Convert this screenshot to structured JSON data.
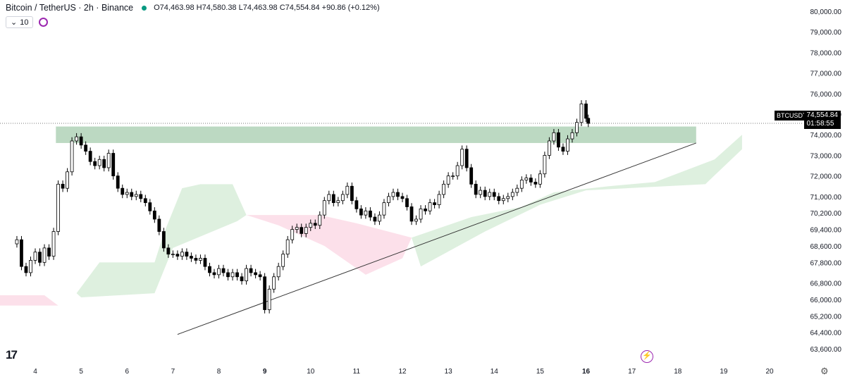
{
  "header": {
    "title": "Bitcoin / TetherUS · 2h · Binance",
    "ohlc": "O74,463.98  H74,580.38  L74,463.98  C74,554.84  +90.86 (+0.12%)",
    "indicator_value": "10"
  },
  "last_price": {
    "symbol": "BTCUSDT",
    "price": "74,554.84",
    "countdown": "01:58:55"
  },
  "colors": {
    "up": "#ffffff",
    "down": "#000000",
    "wick": "#000000",
    "kumo_bull": "#a5d6a7",
    "kumo_bear": "#f8bbd0",
    "zone": "#8fbf9a"
  },
  "chart_data": {
    "type": "candlestick",
    "x_ticks": [
      "4",
      "5",
      "6",
      "7",
      "8",
      "9",
      "10",
      "11",
      "12",
      "13",
      "14",
      "15",
      "16",
      "17",
      "18",
      "19",
      "20"
    ],
    "y_ticks": [
      "80,000.00",
      "79,000.00",
      "78,000.00",
      "77,000.00",
      "76,000.00",
      "75,000.00",
      "74,000.00",
      "73,000.00",
      "72,000.00",
      "71,000.00",
      "70,200.00",
      "69,400.00",
      "68,600.00",
      "67,800.00",
      "66,800.00",
      "66,000.00",
      "65,200.00",
      "64,400.00",
      "63,600.00"
    ],
    "ylim": [
      63300,
      80200
    ],
    "candles": [
      [
        3.6,
        68900
      ],
      [
        3.7,
        67600
      ],
      [
        3.8,
        67300
      ],
      [
        3.9,
        67900
      ],
      [
        4.0,
        68300
      ],
      [
        4.1,
        67800
      ],
      [
        4.2,
        68500
      ],
      [
        4.3,
        68100
      ],
      [
        4.4,
        69300
      ],
      [
        4.5,
        71600
      ],
      [
        4.6,
        71400
      ],
      [
        4.7,
        72200
      ],
      [
        4.8,
        73700
      ],
      [
        4.9,
        73900
      ],
      [
        5.0,
        73500
      ],
      [
        5.1,
        73200
      ],
      [
        5.2,
        72700
      ],
      [
        5.3,
        72500
      ],
      [
        5.4,
        72800
      ],
      [
        5.5,
        72400
      ],
      [
        5.6,
        73100
      ],
      [
        5.7,
        72000
      ],
      [
        5.8,
        71400
      ],
      [
        5.9,
        71100
      ],
      [
        6.0,
        71200
      ],
      [
        6.1,
        71000
      ],
      [
        6.2,
        71100
      ],
      [
        6.3,
        70900
      ],
      [
        6.4,
        70700
      ],
      [
        6.5,
        70300
      ],
      [
        6.6,
        69900
      ],
      [
        6.7,
        69300
      ],
      [
        6.8,
        68500
      ],
      [
        6.9,
        68200
      ],
      [
        7.0,
        68200
      ],
      [
        7.1,
        68100
      ],
      [
        7.2,
        68300
      ],
      [
        7.3,
        68100
      ],
      [
        7.4,
        68000
      ],
      [
        7.5,
        67900
      ],
      [
        7.6,
        68000
      ],
      [
        7.7,
        67600
      ],
      [
        7.8,
        67300
      ],
      [
        7.9,
        67200
      ],
      [
        8.0,
        67500
      ],
      [
        8.1,
        67300
      ],
      [
        8.2,
        67100
      ],
      [
        8.3,
        67300
      ],
      [
        8.4,
        67100
      ],
      [
        8.5,
        66900
      ],
      [
        8.6,
        67500
      ],
      [
        8.7,
        67300
      ],
      [
        8.8,
        67200
      ],
      [
        8.9,
        67100
      ],
      [
        9.0,
        65500
      ],
      [
        9.1,
        66500
      ],
      [
        9.2,
        67100
      ],
      [
        9.3,
        67600
      ],
      [
        9.4,
        68200
      ],
      [
        9.5,
        68900
      ],
      [
        9.6,
        69400
      ],
      [
        9.7,
        69500
      ],
      [
        9.8,
        69200
      ],
      [
        9.9,
        69500
      ],
      [
        10.0,
        69700
      ],
      [
        10.1,
        69600
      ],
      [
        10.2,
        70100
      ],
      [
        10.3,
        70800
      ],
      [
        10.4,
        71100
      ],
      [
        10.5,
        70700
      ],
      [
        10.6,
        70800
      ],
      [
        10.7,
        71100
      ],
      [
        10.8,
        71500
      ],
      [
        10.9,
        70800
      ],
      [
        11.0,
        70400
      ],
      [
        11.1,
        70100
      ],
      [
        11.2,
        70300
      ],
      [
        11.3,
        70000
      ],
      [
        11.4,
        69800
      ],
      [
        11.5,
        70100
      ],
      [
        11.6,
        70700
      ],
      [
        11.7,
        71000
      ],
      [
        11.8,
        71200
      ],
      [
        11.9,
        71000
      ],
      [
        12.0,
        70900
      ],
      [
        12.1,
        70500
      ],
      [
        12.2,
        69800
      ],
      [
        12.3,
        69900
      ],
      [
        12.4,
        70400
      ],
      [
        12.5,
        70300
      ],
      [
        12.6,
        70700
      ],
      [
        12.7,
        70600
      ],
      [
        12.8,
        71100
      ],
      [
        12.9,
        71600
      ],
      [
        13.0,
        72000
      ],
      [
        13.1,
        72000
      ],
      [
        13.2,
        72500
      ],
      [
        13.3,
        73300
      ],
      [
        13.4,
        72400
      ],
      [
        13.5,
        71600
      ],
      [
        13.6,
        71100
      ],
      [
        13.7,
        71300
      ],
      [
        13.8,
        71000
      ],
      [
        13.9,
        71200
      ],
      [
        14.0,
        71000
      ],
      [
        14.1,
        70800
      ],
      [
        14.2,
        70900
      ],
      [
        14.3,
        71000
      ],
      [
        14.4,
        71200
      ],
      [
        14.5,
        71400
      ],
      [
        14.6,
        71800
      ],
      [
        14.7,
        71900
      ],
      [
        14.8,
        71700
      ],
      [
        14.9,
        71600
      ],
      [
        15.0,
        72100
      ],
      [
        15.1,
        73000
      ],
      [
        15.2,
        73700
      ],
      [
        15.3,
        74100
      ],
      [
        15.4,
        73400
      ],
      [
        15.5,
        73200
      ],
      [
        15.6,
        73800
      ],
      [
        15.7,
        74100
      ],
      [
        15.8,
        74600
      ],
      [
        15.9,
        75500
      ],
      [
        16.0,
        74800
      ],
      [
        16.05,
        74555
      ]
    ],
    "resistance_zone": [
      73600,
      74400
    ],
    "support_trendline": [
      [
        7.1,
        64300
      ],
      [
        18.4,
        73600
      ]
    ],
    "annotations": [
      "BTCUSDT 74,554.84 01:58:55"
    ]
  }
}
